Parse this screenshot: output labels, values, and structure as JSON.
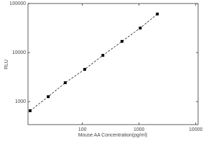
{
  "chart_data": {
    "type": "scatter",
    "xlabel": "Mouse AA Concentration(pg/ml)",
    "ylabel": "RLU",
    "x": [
      12,
      25,
      50,
      110,
      230,
      500,
      1050,
      2100
    ],
    "values": [
      652,
      1260,
      2430,
      4540,
      8770,
      16900,
      31600,
      61000
    ],
    "color": "#000000",
    "line_style": "dashed",
    "xscale": "log",
    "yscale": "log",
    "xlim": [
      11,
      11000
    ],
    "ylim": [
      340,
      100000
    ],
    "xticks": [
      100,
      1000,
      10000
    ],
    "yticks": [
      1000,
      10000,
      100000
    ]
  }
}
